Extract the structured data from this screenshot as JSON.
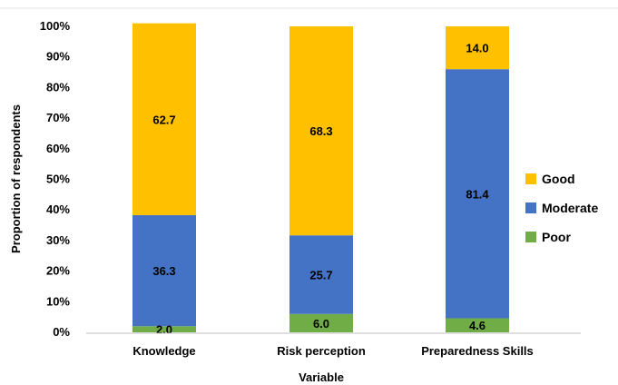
{
  "chart_data": {
    "type": "bar",
    "stacked": true,
    "title": "",
    "xlabel": "Variable",
    "ylabel": "Proportion of respondents",
    "ylim": [
      0,
      100
    ],
    "y_ticks": [
      "0%",
      "10%",
      "20%",
      "30%",
      "40%",
      "50%",
      "60%",
      "70%",
      "80%",
      "90%",
      "100%"
    ],
    "categories": [
      "Knowledge",
      "Risk perception",
      "Preparedness Skills"
    ],
    "series": [
      {
        "name": "Poor",
        "color": "#70AD47",
        "values": [
          2.0,
          6.0,
          4.6
        ],
        "labels": [
          "2.0",
          "6.0",
          "4.6"
        ]
      },
      {
        "name": "Moderate",
        "color": "#4472C4",
        "values": [
          36.3,
          25.7,
          81.4
        ],
        "labels": [
          "36.3",
          "25.7",
          "81.4"
        ]
      },
      {
        "name": "Good",
        "color": "#FFC000",
        "values": [
          62.7,
          68.3,
          14.0
        ],
        "labels": [
          "62.7",
          "68.3",
          "14.0"
        ]
      }
    ],
    "legend": {
      "position": "right",
      "order": [
        "Good",
        "Moderate",
        "Poor"
      ]
    },
    "grid": false
  }
}
